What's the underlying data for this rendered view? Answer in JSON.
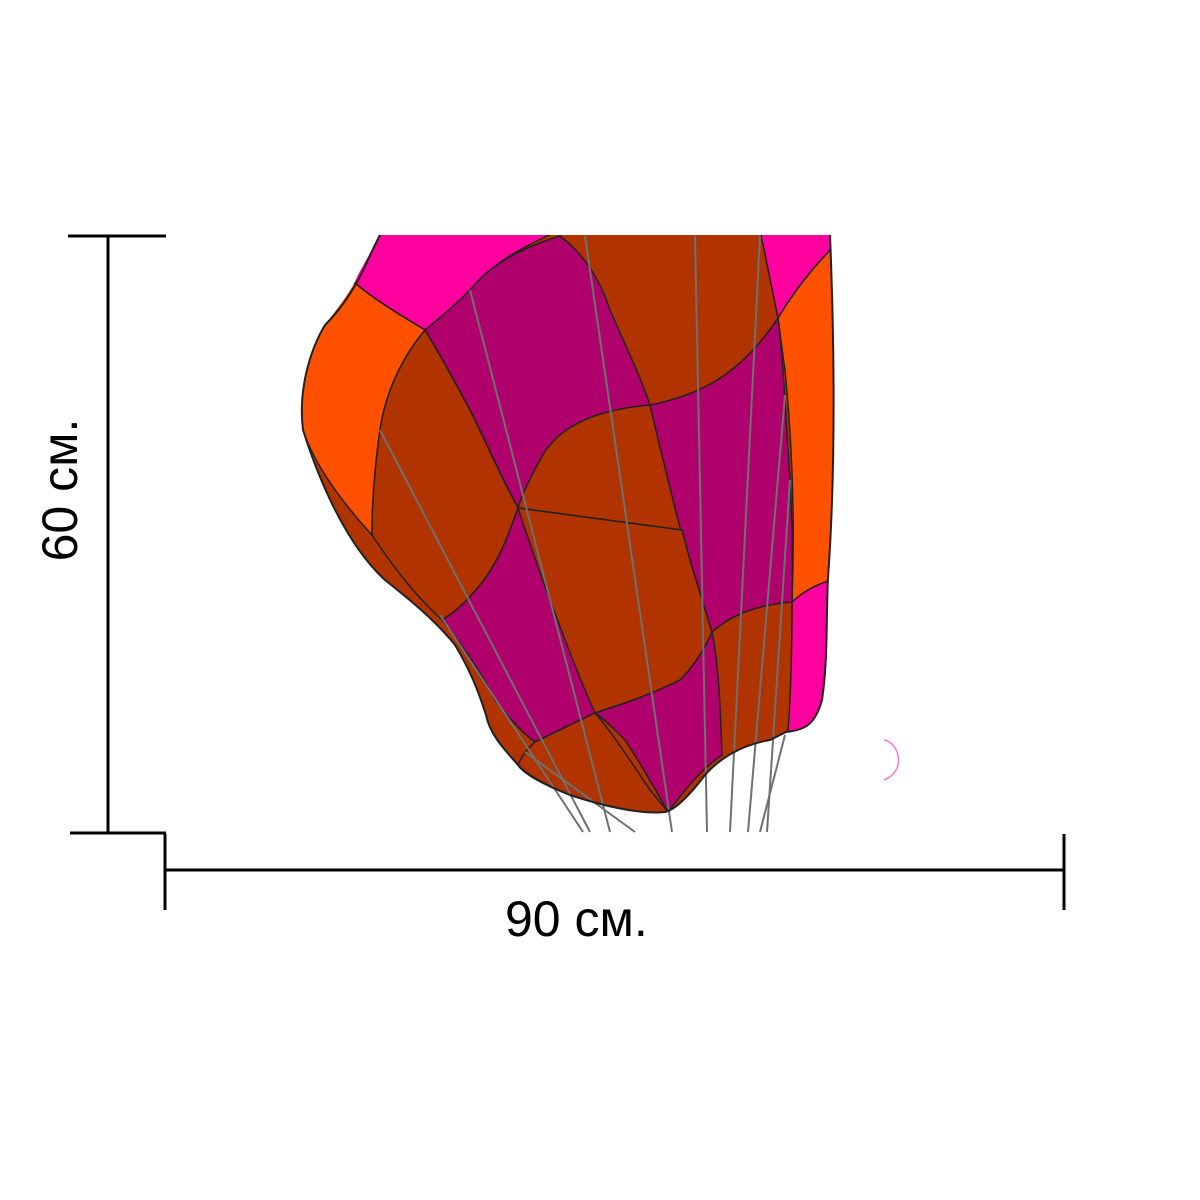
{
  "dimensions": {
    "width_label": "90 см.",
    "height_label": "60 см."
  },
  "colors": {
    "magenta": "#ff009f",
    "orange": "#ff5100",
    "rust": "#b03300",
    "purple": "#b0006c",
    "outline": "#222222",
    "rigging": "#707070",
    "dimension_line": "#000000"
  }
}
